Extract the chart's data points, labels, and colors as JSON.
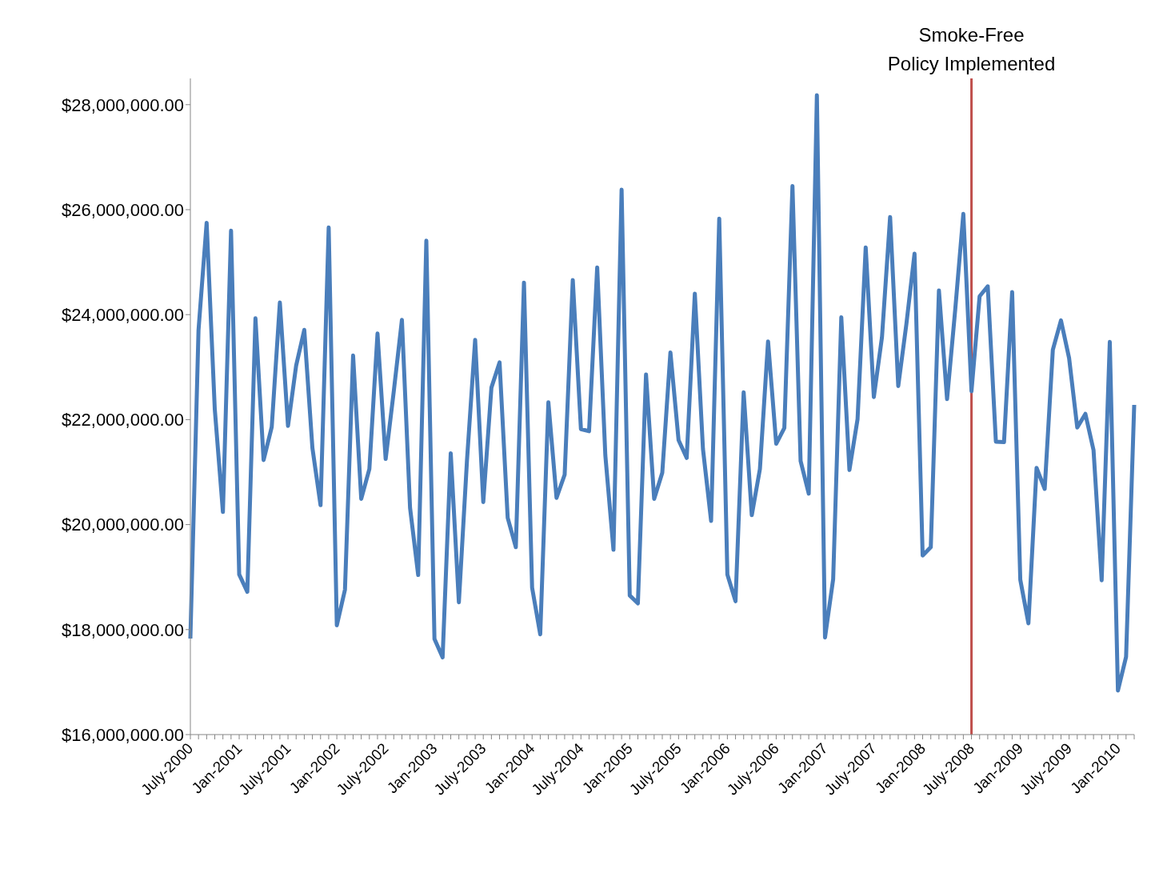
{
  "chart_data": {
    "type": "line",
    "categories": [
      "July-2000",
      null,
      null,
      null,
      null,
      null,
      "Jan-2001",
      null,
      null,
      null,
      null,
      null,
      "July-2001",
      null,
      null,
      null,
      null,
      null,
      "Jan-2002",
      null,
      null,
      null,
      null,
      null,
      "July-2002",
      null,
      null,
      null,
      null,
      null,
      "Jan-2003",
      null,
      null,
      null,
      null,
      null,
      "July-2003",
      null,
      null,
      null,
      null,
      null,
      "Jan-2004",
      null,
      null,
      null,
      null,
      null,
      "July-2004",
      null,
      null,
      null,
      null,
      null,
      "Jan-2005",
      null,
      null,
      null,
      null,
      null,
      "July-2005",
      null,
      null,
      null,
      null,
      null,
      "Jan-2006",
      null,
      null,
      null,
      null,
      null,
      "July-2006",
      null,
      null,
      null,
      null,
      null,
      "Jan-2007",
      null,
      null,
      null,
      null,
      null,
      "July-2007",
      null,
      null,
      null,
      null,
      null,
      "Jan-2008",
      null,
      null,
      null,
      null,
      null,
      "July-2008",
      null,
      null,
      null,
      null,
      null,
      "Jan-2009",
      null,
      null,
      null,
      null,
      null,
      "July-2009",
      null,
      null,
      null,
      null,
      null,
      "Jan-2010",
      null,
      null
    ],
    "series": [
      {
        "color": "#4a7ebb",
        "values": [
          17830000,
          23700000,
          25750000,
          22200000,
          20240000,
          25600000,
          19050000,
          18720000,
          23930000,
          21230000,
          21860000,
          24230000,
          21880000,
          23030000,
          23710000,
          21460000,
          20370000,
          25660000,
          18080000,
          18760000,
          23220000,
          20490000,
          21060000,
          23640000,
          21250000,
          22540000,
          23900000,
          20320000,
          19040000,
          25410000,
          17820000,
          17470000,
          21360000,
          18520000,
          21230000,
          23520000,
          20430000,
          22610000,
          23090000,
          20130000,
          19570000,
          24610000,
          18800000,
          17910000,
          22330000,
          20510000,
          20950000,
          24660000,
          21820000,
          21780000,
          24900000,
          21320000,
          19520000,
          26380000,
          18650000,
          18500000,
          22860000,
          20490000,
          20990000,
          23280000,
          21610000,
          21270000,
          24400000,
          21440000,
          20070000,
          25830000,
          19050000,
          18540000,
          22520000,
          20180000,
          21060000,
          23490000,
          21540000,
          21840000,
          26450000,
          21210000,
          20590000,
          28180000,
          17850000,
          18960000,
          23950000,
          21040000,
          22010000,
          25280000,
          22430000,
          23570000,
          25860000,
          22640000,
          23820000,
          25160000,
          19410000,
          19570000,
          24460000,
          22390000,
          24090000,
          25920000,
          22540000,
          24350000,
          24540000,
          21580000,
          21570000,
          24430000,
          18950000,
          18120000,
          21080000,
          20680000,
          23330000,
          23890000,
          23170000,
          21850000,
          22110000,
          21420000,
          18940000,
          23480000,
          16840000,
          17480000,
          22280000
        ]
      }
    ],
    "ylim": [
      16000000,
      28500000
    ],
    "yticks": [
      {
        "value": 16000000,
        "label": "$16,000,000.00"
      },
      {
        "value": 18000000,
        "label": "$18,000,000.00"
      },
      {
        "value": 20000000,
        "label": "$20,000,000.00"
      },
      {
        "value": 22000000,
        "label": "$22,000,000.00"
      },
      {
        "value": 24000000,
        "label": "$24,000,000.00"
      },
      {
        "value": 26000000,
        "label": "$26,000,000.00"
      },
      {
        "value": 28000000,
        "label": "$28,000,000.00"
      }
    ],
    "ref_lines": [
      {
        "axis": "x",
        "value": "July-2008",
        "label": "Smoke-Free\nPolicy Implemented",
        "color": "#c0504d"
      }
    ],
    "grid": false,
    "legend": false,
    "marker": "none",
    "line_style": "solid"
  }
}
